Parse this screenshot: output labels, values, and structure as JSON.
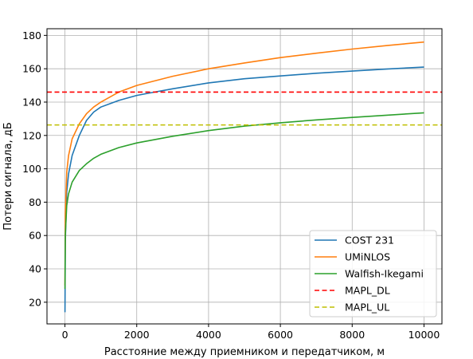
{
  "chart_data": {
    "type": "line",
    "title": "",
    "xlabel": "Расстояние между приемником и передатчиком, м",
    "ylabel": "Потери сигнала, дБ",
    "xlim": [
      -500,
      10500
    ],
    "ylim": [
      7,
      184
    ],
    "xticks": [
      0,
      2000,
      4000,
      6000,
      8000,
      10000
    ],
    "yticks": [
      20,
      40,
      60,
      80,
      100,
      120,
      140,
      160,
      180
    ],
    "grid": true,
    "legend_position": "lower-right",
    "series": [
      {
        "name": "COST 231",
        "color": "#1f77b4",
        "style": "solid",
        "points": [
          [
            1,
            14
          ],
          [
            10,
            56
          ],
          [
            50,
            86
          ],
          [
            100,
            97
          ],
          [
            200,
            108
          ],
          [
            400,
            120
          ],
          [
            600,
            129
          ],
          [
            800,
            134
          ],
          [
            1000,
            137
          ],
          [
            1500,
            141
          ],
          [
            2000,
            144
          ],
          [
            2500,
            146
          ],
          [
            3000,
            148
          ],
          [
            4000,
            151.5
          ],
          [
            5000,
            154
          ],
          [
            6000,
            155.7
          ],
          [
            7000,
            157.3
          ],
          [
            8000,
            158.6
          ],
          [
            9000,
            159.9
          ],
          [
            10000,
            161
          ]
        ]
      },
      {
        "name": "UMiNLOS",
        "color": "#ff7f0e",
        "style": "solid",
        "points": [
          [
            1,
            30
          ],
          [
            10,
            73
          ],
          [
            50,
            98
          ],
          [
            100,
            108
          ],
          [
            200,
            118
          ],
          [
            400,
            127
          ],
          [
            600,
            133
          ],
          [
            800,
            137
          ],
          [
            1000,
            140
          ],
          [
            1500,
            146
          ],
          [
            2000,
            150
          ],
          [
            3000,
            155.5
          ],
          [
            4000,
            160
          ],
          [
            5000,
            163.5
          ],
          [
            6000,
            166.7
          ],
          [
            7000,
            169.3
          ],
          [
            8000,
            171.8
          ],
          [
            9000,
            174
          ],
          [
            10000,
            176
          ]
        ]
      },
      {
        "name": "Walfish-Ikegami",
        "color": "#2ca02c",
        "style": "solid",
        "points": [
          [
            1,
            28
          ],
          [
            10,
            60
          ],
          [
            50,
            78
          ],
          [
            100,
            85
          ],
          [
            200,
            92
          ],
          [
            400,
            99
          ],
          [
            600,
            103
          ],
          [
            800,
            106.3
          ],
          [
            1000,
            108.7
          ],
          [
            1500,
            112.7
          ],
          [
            2000,
            115.5
          ],
          [
            3000,
            119.5
          ],
          [
            4000,
            122.9
          ],
          [
            5000,
            125.6
          ],
          [
            6000,
            127.6
          ],
          [
            7000,
            129.3
          ],
          [
            8000,
            130.8
          ],
          [
            9000,
            132.2
          ],
          [
            10000,
            133.6
          ]
        ]
      },
      {
        "name": "MAPL_DL",
        "color": "#ff0000",
        "style": "dashed",
        "hline": 146
      },
      {
        "name": "MAPL_UL",
        "color": "#bfbf00",
        "style": "dashed",
        "hline": 126.3
      }
    ]
  }
}
